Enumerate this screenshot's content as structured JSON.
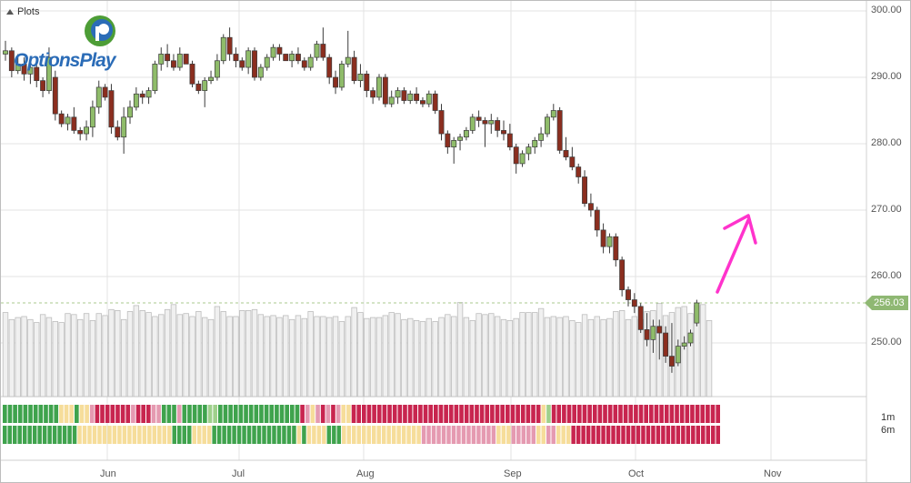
{
  "header": {
    "plots_label": "Plots"
  },
  "logo": {
    "text": "OptionsPlay"
  },
  "chart_data": {
    "type": "candlestick",
    "y_ticks": [
      "300.00",
      "290.00",
      "280.00",
      "270.00",
      "260.00",
      "250.00"
    ],
    "y_tick_values": [
      300,
      290,
      280,
      270,
      260,
      250
    ],
    "ylim": [
      241.5,
      301.5
    ],
    "x_ticks": [
      "Jun",
      "Jul",
      "Aug",
      "Sep",
      "Oct",
      "Nov"
    ],
    "last_price": "256.03",
    "last_price_value": 256.03,
    "signal_labels": [
      "1m",
      "6m"
    ],
    "candles": [
      [
        293.5,
        295.5,
        292.5,
        294.0
      ],
      [
        294.0,
        294.5,
        290.0,
        291.0
      ],
      [
        291.0,
        293.5,
        290.5,
        292.0
      ],
      [
        292.0,
        293.0,
        289.5,
        290.5
      ],
      [
        290.5,
        292.5,
        289.0,
        291.5
      ],
      [
        291.5,
        292.0,
        288.5,
        289.5
      ],
      [
        289.5,
        290.0,
        287.0,
        288.0
      ],
      [
        288.0,
        294.5,
        287.5,
        293.0
      ],
      [
        290.0,
        291.0,
        283.5,
        284.5
      ],
      [
        284.5,
        285.0,
        282.5,
        283.0
      ],
      [
        283.0,
        284.5,
        282.0,
        284.0
      ],
      [
        284.0,
        285.5,
        281.5,
        282.0
      ],
      [
        282.0,
        282.5,
        280.5,
        281.5
      ],
      [
        281.5,
        283.5,
        280.5,
        282.5
      ],
      [
        282.5,
        286.5,
        281.0,
        285.5
      ],
      [
        285.5,
        289.5,
        284.5,
        288.5
      ],
      [
        288.5,
        289.0,
        286.5,
        287.0
      ],
      [
        288.0,
        289.0,
        281.5,
        282.5
      ],
      [
        282.5,
        283.5,
        280.5,
        281.0
      ],
      [
        281.0,
        285.5,
        278.5,
        284.0
      ],
      [
        284.0,
        286.5,
        283.0,
        285.5
      ],
      [
        285.5,
        288.5,
        285.0,
        287.5
      ],
      [
        287.5,
        288.0,
        286.0,
        287.0
      ],
      [
        287.0,
        288.5,
        286.0,
        288.0
      ],
      [
        288.0,
        292.5,
        287.5,
        292.0
      ],
      [
        292.0,
        294.5,
        291.0,
        293.5
      ],
      [
        293.5,
        295.0,
        291.5,
        292.5
      ],
      [
        292.5,
        293.5,
        291.0,
        291.5
      ],
      [
        291.5,
        294.5,
        291.0,
        293.5
      ],
      [
        293.5,
        293.5,
        292.0,
        292.0
      ],
      [
        292.0,
        292.5,
        288.5,
        289.0
      ],
      [
        289.0,
        289.5,
        287.5,
        288.0
      ],
      [
        288.0,
        290.0,
        285.5,
        289.5
      ],
      [
        289.5,
        291.0,
        289.0,
        290.0
      ],
      [
        290.0,
        293.5,
        289.5,
        292.5
      ],
      [
        292.5,
        296.5,
        292.0,
        296.0
      ],
      [
        296.0,
        297.5,
        292.5,
        293.5
      ],
      [
        293.5,
        294.5,
        291.5,
        292.5
      ],
      [
        292.5,
        293.0,
        291.0,
        291.5
      ],
      [
        291.5,
        294.5,
        290.5,
        294.0
      ],
      [
        294.0,
        294.5,
        289.5,
        290.0
      ],
      [
        290.0,
        292.0,
        289.5,
        291.5
      ],
      [
        291.5,
        293.5,
        291.0,
        293.0
      ],
      [
        293.0,
        295.0,
        292.5,
        294.5
      ],
      [
        294.5,
        295.0,
        292.5,
        293.5
      ],
      [
        293.5,
        293.5,
        292.5,
        292.5
      ],
      [
        292.5,
        294.0,
        291.5,
        293.5
      ],
      [
        293.5,
        294.5,
        292.0,
        292.5
      ],
      [
        292.5,
        293.0,
        291.0,
        291.5
      ],
      [
        291.5,
        293.5,
        291.0,
        293.0
      ],
      [
        293.0,
        295.5,
        292.5,
        295.0
      ],
      [
        295.0,
        297.5,
        292.5,
        293.0
      ],
      [
        293.0,
        293.5,
        289.0,
        290.0
      ],
      [
        290.0,
        291.0,
        287.5,
        288.5
      ],
      [
        288.5,
        292.5,
        288.0,
        292.0
      ],
      [
        292.0,
        297.0,
        291.5,
        293.0
      ],
      [
        293.0,
        294.0,
        289.0,
        289.5
      ],
      [
        289.5,
        292.0,
        288.5,
        290.5
      ],
      [
        290.5,
        291.0,
        287.0,
        288.0
      ],
      [
        288.0,
        288.5,
        286.0,
        287.0
      ],
      [
        287.0,
        290.5,
        286.5,
        290.0
      ],
      [
        290.0,
        290.5,
        285.5,
        286.0
      ],
      [
        286.0,
        288.0,
        285.5,
        287.0
      ],
      [
        287.0,
        288.5,
        286.0,
        288.0
      ],
      [
        288.0,
        288.5,
        286.0,
        286.5
      ],
      [
        286.5,
        288.0,
        286.0,
        287.5
      ],
      [
        287.5,
        288.5,
        286.0,
        286.5
      ],
      [
        286.5,
        287.0,
        285.5,
        286.0
      ],
      [
        286.0,
        288.0,
        285.5,
        287.5
      ],
      [
        287.5,
        288.0,
        284.5,
        285.0
      ],
      [
        285.0,
        286.0,
        280.5,
        281.5
      ],
      [
        281.5,
        282.0,
        278.5,
        279.5
      ],
      [
        279.5,
        281.0,
        277.0,
        280.5
      ],
      [
        280.5,
        281.5,
        279.0,
        281.0
      ],
      [
        281.0,
        282.5,
        280.5,
        282.0
      ],
      [
        282.0,
        284.5,
        281.5,
        284.0
      ],
      [
        284.0,
        285.0,
        282.5,
        283.5
      ],
      [
        283.5,
        284.0,
        279.5,
        283.0
      ],
      [
        283.0,
        284.5,
        281.5,
        283.5
      ],
      [
        283.5,
        284.0,
        281.0,
        282.0
      ],
      [
        282.0,
        283.5,
        280.5,
        281.5
      ],
      [
        281.5,
        283.0,
        279.0,
        279.5
      ],
      [
        279.5,
        280.0,
        275.5,
        277.0
      ],
      [
        277.0,
        279.0,
        276.5,
        278.5
      ],
      [
        278.5,
        280.0,
        277.5,
        279.5
      ],
      [
        279.5,
        281.0,
        278.5,
        280.5
      ],
      [
        280.5,
        282.5,
        279.5,
        281.5
      ],
      [
        281.5,
        284.5,
        281.0,
        284.0
      ],
      [
        284.0,
        286.0,
        283.5,
        285.0
      ],
      [
        285.0,
        285.5,
        278.5,
        279.0
      ],
      [
        279.0,
        281.0,
        277.5,
        278.0
      ],
      [
        278.0,
        279.5,
        276.0,
        276.5
      ],
      [
        276.5,
        277.0,
        274.0,
        275.0
      ],
      [
        275.0,
        276.0,
        270.5,
        271.0
      ],
      [
        271.0,
        272.5,
        269.0,
        270.0
      ],
      [
        270.0,
        270.5,
        266.0,
        267.0
      ],
      [
        267.0,
        268.0,
        263.5,
        264.5
      ],
      [
        264.5,
        266.5,
        263.5,
        266.0
      ],
      [
        266.0,
        266.5,
        261.5,
        262.5
      ],
      [
        262.5,
        263.0,
        257.0,
        258.0
      ],
      [
        258.0,
        258.5,
        255.5,
        256.5
      ],
      [
        256.5,
        257.5,
        254.5,
        255.5
      ],
      [
        255.5,
        256.0,
        251.5,
        252.0
      ],
      [
        252.0,
        254.5,
        249.5,
        250.5
      ],
      [
        250.5,
        253.5,
        248.5,
        252.5
      ],
      [
        252.5,
        253.5,
        247.5,
        251.5
      ],
      [
        251.5,
        252.5,
        247.0,
        248.0
      ],
      [
        248.0,
        253.0,
        245.5,
        246.5
      ],
      [
        247.0,
        250.5,
        246.5,
        249.5
      ],
      [
        249.5,
        251.0,
        249.0,
        250.0
      ],
      [
        250.0,
        252.0,
        249.5,
        251.5
      ],
      [
        253.0,
        256.5,
        252.5,
        256.03
      ]
    ],
    "volume": [
      84,
      77,
      79,
      80,
      77,
      74,
      82,
      79,
      75,
      74,
      83,
      82,
      77,
      83,
      76,
      83,
      81,
      87,
      86,
      77,
      85,
      91,
      86,
      84,
      80,
      82,
      87,
      92,
      82,
      83,
      80,
      85,
      79,
      77,
      90,
      85,
      80,
      80,
      86,
      86,
      87,
      82,
      80,
      81,
      79,
      81,
      77,
      81,
      78,
      85,
      80,
      80,
      79,
      80,
      75,
      80,
      89,
      84,
      78,
      79,
      79,
      81,
      84,
      83,
      77,
      78,
      76,
      75,
      78,
      75,
      79,
      82,
      80,
      94,
      79,
      76,
      83,
      82,
      83,
      80,
      77,
      76,
      78,
      84,
      84,
      84,
      88,
      79,
      80,
      79,
      80,
      76,
      74,
      82,
      77,
      80,
      77,
      78,
      85,
      86,
      77,
      80,
      77,
      85,
      86,
      93,
      81,
      84,
      89,
      90,
      83,
      91,
      92,
      76
    ],
    "signal_1m": [
      "g",
      "g",
      "g",
      "g",
      "g",
      "g",
      "g",
      "g",
      "g",
      "g",
      "g",
      "y",
      "y",
      "y",
      "g",
      "y",
      "y",
      "p",
      "r",
      "r",
      "r",
      "r",
      "r",
      "r",
      "r",
      "p",
      "r",
      "r",
      "r",
      "p",
      "p",
      "g",
      "g",
      "g",
      "p",
      "g",
      "g",
      "g",
      "g",
      "g",
      "L",
      "L",
      "g",
      "g",
      "g",
      "g",
      "g",
      "g",
      "g",
      "g",
      "g",
      "g",
      "g",
      "g",
      "g",
      "g",
      "g",
      "g",
      "r",
      "p",
      "y",
      "p",
      "r",
      "p",
      "r",
      "p",
      "y",
      "y",
      "r",
      "r",
      "r",
      "r",
      "r",
      "r",
      "r",
      "r",
      "r",
      "r",
      "r",
      "r",
      "r",
      "r",
      "r",
      "r",
      "r",
      "r",
      "r",
      "r",
      "r",
      "r",
      "r",
      "r",
      "r",
      "r",
      "r",
      "r",
      "r",
      "r",
      "r",
      "r",
      "r",
      "r",
      "r",
      "r",
      "r",
      "y",
      "L",
      "r",
      "r",
      "r",
      "r",
      "r",
      "r",
      "r",
      "r",
      "r",
      "r",
      "r",
      "r",
      "r",
      "r",
      "r",
      "r",
      "r",
      "r",
      "r",
      "r",
      "r",
      "r",
      "r",
      "r",
      "r",
      "r",
      "r",
      "r",
      "r",
      "r",
      "r",
      "r",
      "r"
    ],
    "signal_6m": [
      "g",
      "g",
      "g",
      "g",
      "g",
      "g",
      "g",
      "g",
      "g",
      "g",
      "g",
      "g",
      "g",
      "g",
      "g",
      "y",
      "y",
      "y",
      "y",
      "y",
      "y",
      "y",
      "y",
      "y",
      "y",
      "y",
      "y",
      "y",
      "y",
      "y",
      "y",
      "y",
      "y",
      "y",
      "g",
      "g",
      "g",
      "g",
      "y",
      "y",
      "y",
      "y",
      "g",
      "g",
      "g",
      "g",
      "g",
      "g",
      "g",
      "g",
      "g",
      "g",
      "g",
      "g",
      "g",
      "g",
      "g",
      "g",
      "g",
      "y",
      "g",
      "y",
      "y",
      "y",
      "y",
      "g",
      "g",
      "g",
      "y",
      "y",
      "y",
      "y",
      "y",
      "y",
      "y",
      "y",
      "y",
      "y",
      "y",
      "y",
      "y",
      "y",
      "y",
      "y",
      "p",
      "p",
      "p",
      "p",
      "p",
      "p",
      "p",
      "p",
      "p",
      "p",
      "p",
      "p",
      "p",
      "p",
      "p",
      "y",
      "y",
      "y",
      "p",
      "p",
      "p",
      "p",
      "p",
      "y",
      "y",
      "p",
      "p",
      "y",
      "y",
      "y",
      "r",
      "r",
      "r",
      "r",
      "r",
      "r",
      "r",
      "r",
      "r",
      "r",
      "r",
      "r",
      "r",
      "r",
      "r",
      "r",
      "r",
      "r",
      "r",
      "r",
      "r",
      "r",
      "r",
      "r",
      "r",
      "r",
      "r",
      "r",
      "r",
      "r"
    ]
  },
  "colors": {
    "up_fill": "#8fbc6a",
    "down_fill": "#8b2e1f",
    "candle_stroke": "#3a3a3a",
    "volume_fill": "#f0f0f0",
    "volume_stroke": "#bdbdbd",
    "grid": "#e3e3e3",
    "price_line": "#a8c98e",
    "arrow": "#ff33cc",
    "sig_green": "#3fa34d",
    "sig_lightgreen": "#9fd08c",
    "sig_yellow": "#f6dd9a",
    "sig_pink": "#e59ab1",
    "sig_red": "#c8254f"
  }
}
